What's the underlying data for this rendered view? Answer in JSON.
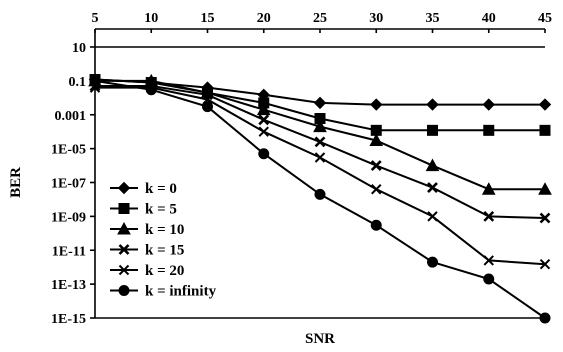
{
  "chart_data": {
    "type": "line",
    "title": "",
    "xlabel": "SNR",
    "ylabel": "BER",
    "x_ticks": [
      "5",
      "10",
      "15",
      "20",
      "25",
      "30",
      "35",
      "40",
      "45"
    ],
    "y_ticks": [
      "10",
      "0.1",
      "0.001",
      "1E-05",
      "1E-07",
      "1E-09",
      "1E-11",
      "1E-13",
      "1E-15"
    ],
    "y_scale": "log",
    "ylim": [
      1e-15,
      10
    ],
    "xlim": [
      5,
      45
    ],
    "grid": false,
    "legend_position": "bottom-left",
    "x": [
      5,
      10,
      15,
      20,
      25,
      30,
      35,
      40,
      45
    ],
    "series": [
      {
        "name": "k = 0",
        "marker": "diamond",
        "values": [
          0.12,
          0.08,
          0.04,
          0.015,
          0.005,
          0.004,
          0.004,
          0.004,
          0.004
        ]
      },
      {
        "name": "k = 5",
        "marker": "square",
        "values": [
          0.12,
          0.08,
          0.02,
          0.005,
          0.0006,
          0.00012,
          0.00012,
          0.00012,
          0.00012
        ]
      },
      {
        "name": "k = 10",
        "marker": "triangle",
        "values": [
          0.1,
          0.1,
          0.02,
          0.002,
          0.0002,
          3e-05,
          1e-06,
          4e-08,
          4e-08
        ]
      },
      {
        "name": "k = 15",
        "marker": "cross",
        "values": [
          0.05,
          0.05,
          0.015,
          0.0005,
          2.5e-05,
          1e-06,
          5e-08,
          1e-09,
          8e-10
        ]
      },
      {
        "name": "k = 20",
        "marker": "x",
        "values": [
          0.04,
          0.04,
          0.008,
          0.0001,
          3e-06,
          4e-08,
          1e-09,
          2.5e-12,
          1.5e-12
        ]
      },
      {
        "name": "k = infinity",
        "marker": "circle",
        "values": [
          0.1,
          0.03,
          0.003,
          5e-06,
          2e-08,
          3e-10,
          2e-12,
          2e-13,
          1e-15
        ]
      }
    ]
  }
}
